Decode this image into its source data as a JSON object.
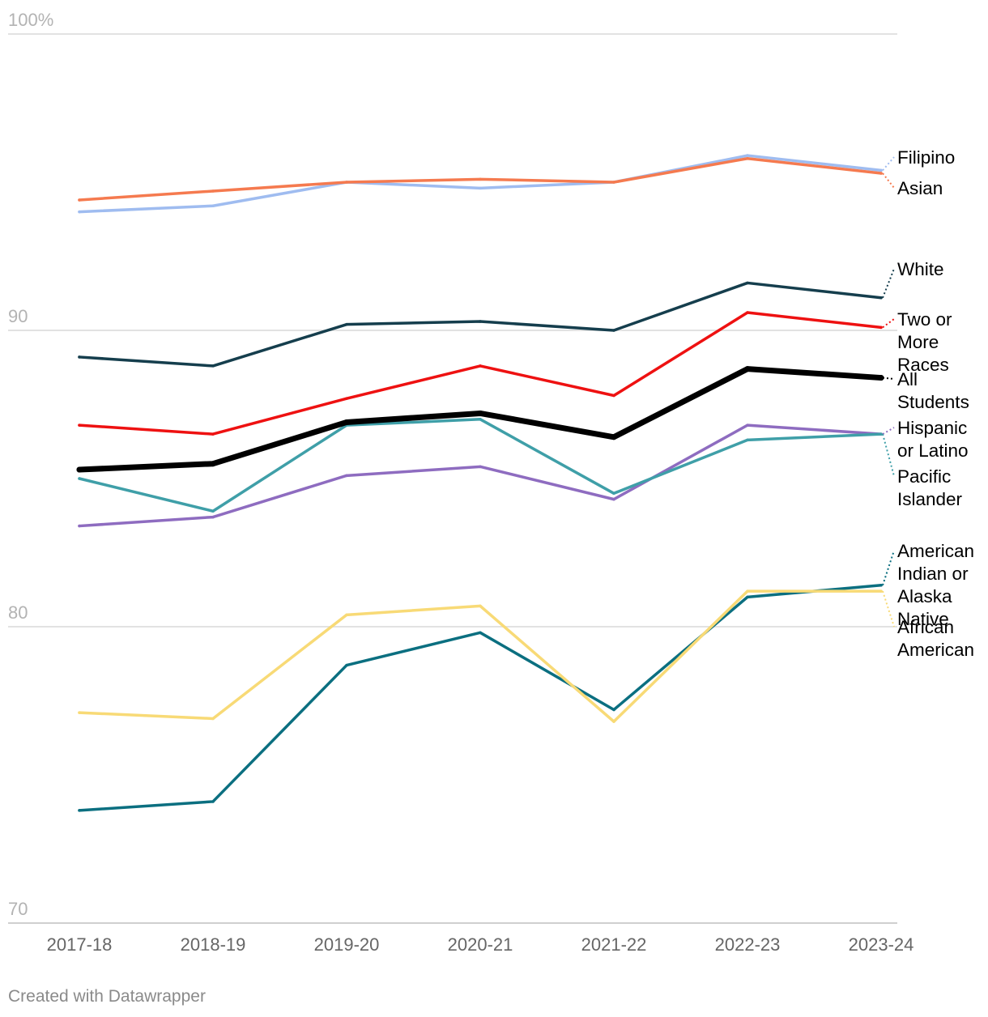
{
  "chart_data": {
    "type": "line",
    "title": "",
    "xlabel": "",
    "ylabel": "",
    "ylim": [
      70,
      100
    ],
    "y_ticks": [
      {
        "value": 100,
        "label": "100%"
      },
      {
        "value": 90,
        "label": "90"
      },
      {
        "value": 80,
        "label": "80"
      },
      {
        "value": 70,
        "label": "70"
      }
    ],
    "categories": [
      "2017-18",
      "2018-19",
      "2019-20",
      "2020-21",
      "2021-22",
      "2022-23",
      "2023-24"
    ],
    "series": [
      {
        "name": "Filipino",
        "label_lines": [
          "Filipino"
        ],
        "color": "#9fbcf0",
        "values": [
          94.0,
          94.2,
          95.0,
          94.8,
          95.0,
          95.9,
          95.4
        ]
      },
      {
        "name": "Asian",
        "label_lines": [
          "Asian"
        ],
        "color": "#f57a4f",
        "values": [
          94.4,
          94.7,
          95.0,
          95.1,
          95.0,
          95.8,
          95.3
        ]
      },
      {
        "name": "White",
        "label_lines": [
          "White"
        ],
        "color": "#153e4d",
        "values": [
          89.1,
          88.8,
          90.2,
          90.3,
          90.0,
          91.6,
          91.1
        ]
      },
      {
        "name": "Two or More Races",
        "label_lines": [
          "Two or",
          "More",
          "Races"
        ],
        "color": "#ee1111",
        "values": [
          86.8,
          86.5,
          87.7,
          88.8,
          87.8,
          90.6,
          90.1
        ]
      },
      {
        "name": "All Students",
        "label_lines": [
          "All",
          "Students"
        ],
        "color": "#000000",
        "values": [
          85.3,
          85.5,
          86.9,
          87.2,
          86.4,
          88.7,
          88.4
        ]
      },
      {
        "name": "Hispanic or Latino",
        "label_lines": [
          "Hispanic",
          "or Latino"
        ],
        "color": "#8e6cc0",
        "values": [
          83.4,
          83.7,
          85.1,
          85.4,
          84.3,
          86.8,
          86.5
        ]
      },
      {
        "name": "Pacific Islander",
        "label_lines": [
          "Pacific",
          "Islander"
        ],
        "color": "#3f9fa8",
        "values": [
          85.0,
          83.9,
          86.8,
          87.0,
          84.5,
          86.3,
          86.5
        ]
      },
      {
        "name": "American Indian or Alaska Native",
        "label_lines": [
          "American",
          "Indian or",
          "Alaska",
          "Native"
        ],
        "color": "#0b6f80",
        "values": [
          73.8,
          74.1,
          78.7,
          79.8,
          77.2,
          81.0,
          81.4
        ]
      },
      {
        "name": "African American",
        "label_lines": [
          "African",
          "American"
        ],
        "color": "#f8da76",
        "values": [
          77.1,
          76.9,
          80.4,
          80.7,
          76.8,
          81.2,
          81.2
        ]
      }
    ]
  },
  "credit": "Created with Datawrapper"
}
